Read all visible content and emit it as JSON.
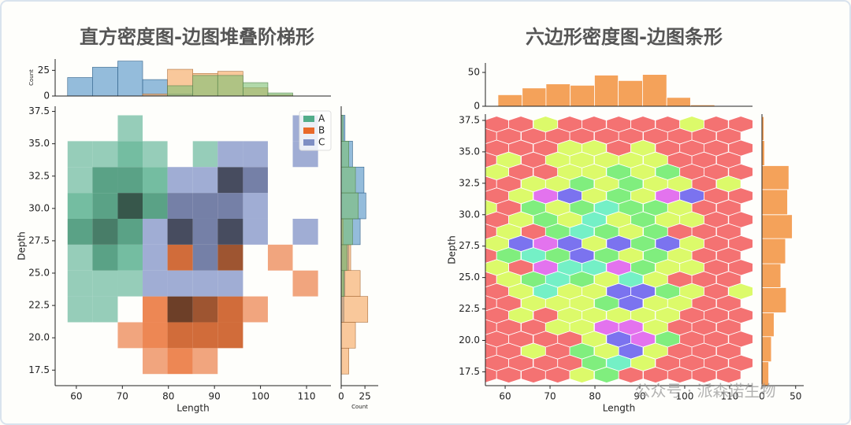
{
  "chart_data": [
    {
      "type": "hist2d",
      "title": "直方密度图-边图堆叠阶梯形",
      "xlabel": "Length",
      "ylabel": "Depth",
      "top_label": "Count",
      "right_label": "Count",
      "xlim": [
        55.4,
        115.3
      ],
      "ylim": [
        16.3,
        37.9
      ],
      "xticks": [
        60,
        70,
        80,
        90,
        100,
        110
      ],
      "yticks": [
        17.5,
        {
          "value": 20,
          "label": "20.0"
        },
        22.5,
        {
          "value": 25,
          "label": "25.0"
        },
        27.5,
        {
          "value": 30,
          "label": "30.0"
        },
        32.5,
        {
          "value": 35,
          "label": "35.0"
        },
        37.5
      ],
      "xbins": [
        58.1,
        63.5,
        69.0,
        74.4,
        79.8,
        85.3,
        90.7,
        96.2,
        101.6,
        107.0,
        112.5
      ],
      "ybins": [
        17.2,
        19.2,
        21.2,
        23.2,
        25.2,
        27.2,
        29.2,
        31.2,
        33.2,
        35.2,
        37.2
      ],
      "legend": "upper right",
      "top_ylim": [
        0,
        36
      ],
      "top_yticks": [
        0,
        25
      ],
      "right_xlim": [
        0,
        39
      ],
      "right_xticks": [
        0,
        25
      ],
      "series": [
        {
          "name": "A",
          "color": "#52ad8a",
          "hist_color": "#4d8fc6",
          "values": [
            [
              0,
              0,
              0,
              0,
              0,
              0,
              0,
              0,
              0,
              0
            ],
            [
              0,
              0,
              0,
              0,
              0,
              0,
              0,
              0,
              0,
              0
            ],
            [
              1,
              1,
              0,
              0,
              0,
              0,
              0,
              0,
              0,
              0
            ],
            [
              1,
              1,
              1,
              0,
              0,
              0,
              0,
              0,
              0,
              0
            ],
            [
              1,
              3,
              2,
              0,
              0,
              0,
              0,
              0,
              0,
              0
            ],
            [
              3,
              4,
              3,
              0,
              0,
              0,
              0,
              0,
              0,
              0
            ],
            [
              2,
              3,
              5,
              3,
              0,
              0,
              0,
              0,
              0,
              0
            ],
            [
              1,
              3,
              3,
              2,
              0,
              0,
              0,
              0,
              0,
              0
            ],
            [
              1,
              1,
              2,
              1,
              0,
              1,
              0,
              0,
              0,
              0
            ],
            [
              0,
              0,
              1,
              0,
              0,
              0,
              0,
              0,
              0,
              0
            ]
          ],
          "x_counts": [
            18,
            28,
            34,
            16,
            2,
            0,
            0,
            0,
            0,
            0
          ],
          "y_counts": [
            0,
            0,
            3,
            4,
            8,
            20,
            26,
            24,
            12,
            4
          ]
        },
        {
          "name": "B",
          "color": "#e8692a",
          "hist_color": "#f5a35c",
          "values": [
            [
              0,
              0,
              0,
              1,
              2,
              1,
              0,
              0,
              0,
              0
            ],
            [
              0,
              0,
              1,
              2,
              3,
              3,
              3,
              0,
              0,
              0
            ],
            [
              0,
              0,
              0,
              2,
              5,
              4,
              3,
              1,
              0,
              0
            ],
            [
              0,
              0,
              0,
              0,
              0,
              0,
              0,
              0,
              0,
              1
            ],
            [
              0,
              0,
              0,
              0,
              3,
              0,
              4,
              0,
              1,
              0
            ],
            [
              0,
              0,
              0,
              0,
              0,
              0,
              0,
              0,
              0,
              0
            ],
            [
              0,
              0,
              0,
              0,
              0,
              0,
              0,
              0,
              0,
              0
            ],
            [
              0,
              0,
              0,
              0,
              0,
              0,
              0,
              0,
              0,
              0
            ],
            [
              0,
              0,
              0,
              0,
              0,
              0,
              0,
              0,
              0,
              0
            ],
            [
              0,
              0,
              0,
              0,
              0,
              0,
              0,
              0,
              0,
              0
            ]
          ],
          "x_counts": [
            0,
            0,
            0,
            2,
            26,
            22,
            24,
            8,
            1,
            0
          ],
          "y_counts": [
            8,
            15,
            28,
            20,
            10,
            2,
            0,
            0,
            0,
            0
          ]
        },
        {
          "name": "C",
          "color": "#7f8fc4",
          "hist_color": "#7dbf74",
          "values": [
            [
              0,
              0,
              0,
              0,
              0,
              0,
              0,
              0,
              0,
              0
            ],
            [
              0,
              0,
              0,
              0,
              0,
              0,
              0,
              0,
              0,
              0
            ],
            [
              0,
              0,
              0,
              0,
              0,
              0,
              0,
              0,
              0,
              0
            ],
            [
              0,
              0,
              0,
              1,
              1,
              1,
              1,
              0,
              0,
              0
            ],
            [
              0,
              0,
              0,
              1,
              0,
              2,
              0,
              0,
              0,
              0
            ],
            [
              0,
              0,
              0,
              1,
              3,
              2,
              3,
              1,
              0,
              1
            ],
            [
              0,
              0,
              0,
              0,
              2,
              2,
              2,
              1,
              0,
              0
            ],
            [
              0,
              0,
              0,
              0,
              1,
              1,
              3,
              2,
              0,
              0
            ],
            [
              0,
              0,
              0,
              0,
              0,
              0,
              1,
              1,
              0,
              1
            ],
            [
              0,
              0,
              0,
              0,
              0,
              0,
              0,
              0,
              0,
              1
            ]
          ],
          "x_counts": [
            0,
            0,
            0,
            0,
            10,
            20,
            20,
            13,
            3,
            0
          ],
          "y_counts": [
            0,
            0,
            0,
            3,
            6,
            12,
            18,
            15,
            8,
            2
          ]
        }
      ]
    },
    {
      "type": "hexbin",
      "title": "六边形密度图-边图条形",
      "xlabel": "Length",
      "ylabel": "Depth",
      "xlim": [
        55.6,
        115.1
      ],
      "ylim": [
        16.4,
        38.0
      ],
      "xticks": [
        60,
        70,
        80,
        90,
        100,
        110
      ],
      "yticks": [
        17.5,
        {
          "value": 20,
          "label": "20.0"
        },
        22.5,
        {
          "value": 25,
          "label": "25.0"
        },
        27.5,
        {
          "value": 30,
          "label": "30.0"
        },
        32.5,
        {
          "value": 35,
          "label": "35.0"
        },
        37.5
      ],
      "hex_x": [
        58.1,
        63.5,
        69.0,
        74.4,
        79.8,
        85.3,
        90.7,
        96.2,
        101.6,
        107.0,
        112.5
      ],
      "hex_y": [
        37.2,
        36.25,
        35.3,
        34.35,
        33.4,
        32.45,
        31.5,
        30.55,
        29.6,
        28.65,
        27.7,
        26.75,
        25.8,
        24.85,
        23.9,
        22.95,
        22.0,
        21.05,
        20.1,
        19.15,
        18.2,
        17.25
      ],
      "counts": [
        [
          1,
          1,
          2,
          1,
          1,
          1,
          1,
          1,
          2,
          1,
          1
        ],
        [
          1,
          1,
          1,
          1,
          1,
          1,
          1,
          1,
          1,
          1,
          1
        ],
        [
          1,
          1,
          1,
          2,
          2,
          1,
          2,
          1,
          1,
          1,
          1
        ],
        [
          1,
          2,
          1,
          2,
          2,
          2,
          2,
          2,
          1,
          1,
          1
        ],
        [
          2,
          1,
          1,
          2,
          2,
          3,
          2,
          3,
          1,
          1,
          1
        ],
        [
          1,
          1,
          2,
          2,
          3,
          2,
          3,
          2,
          2,
          1,
          2
        ],
        [
          1,
          2,
          6,
          5,
          2,
          3,
          2,
          6,
          5,
          1,
          1
        ],
        [
          2,
          1,
          3,
          2,
          3,
          4,
          3,
          3,
          2,
          1,
          1
        ],
        [
          1,
          2,
          3,
          2,
          4,
          2,
          3,
          2,
          2,
          1,
          1
        ],
        [
          1,
          2,
          1,
          3,
          4,
          3,
          2,
          3,
          1,
          1,
          1
        ],
        [
          2,
          5,
          6,
          5,
          2,
          5,
          3,
          5,
          2,
          1,
          1
        ],
        [
          1,
          3,
          4,
          3,
          5,
          3,
          2,
          3,
          2,
          1,
          1
        ],
        [
          2,
          1,
          6,
          4,
          4,
          6,
          3,
          2,
          2,
          1,
          1
        ],
        [
          1,
          2,
          3,
          4,
          3,
          2,
          4,
          2,
          1,
          1,
          1
        ],
        [
          1,
          2,
          4,
          2,
          2,
          5,
          5,
          3,
          2,
          1,
          2
        ],
        [
          1,
          1,
          2,
          2,
          2,
          3,
          5,
          2,
          2,
          1,
          1
        ],
        [
          1,
          2,
          1,
          2,
          2,
          2,
          2,
          2,
          1,
          1,
          1
        ],
        [
          1,
          1,
          1,
          2,
          2,
          6,
          6,
          2,
          1,
          1,
          1
        ],
        [
          1,
          1,
          1,
          1,
          2,
          5,
          6,
          3,
          1,
          1,
          1
        ],
        [
          1,
          1,
          2,
          1,
          3,
          2,
          5,
          2,
          1,
          1,
          1
        ],
        [
          1,
          1,
          1,
          1,
          3,
          4,
          2,
          1,
          1,
          1,
          1
        ],
        [
          1,
          1,
          1,
          1,
          2,
          3,
          1,
          1,
          1,
          1,
          1
        ]
      ],
      "colors": [
        "#f47272",
        "#dcfa6a",
        "#80ee7e",
        "#74f0c6",
        "#7b73ef",
        "#e373ee"
      ],
      "bar_color": "#f4a25a",
      "top_bins": [
        58.4,
        63.8,
        69.1,
        74.5,
        79.9,
        85.2,
        90.6,
        96.0,
        101.3,
        106.7,
        112.1
      ],
      "top_counts": [
        17,
        27,
        33,
        31,
        46,
        38,
        47,
        13,
        2,
        1
      ],
      "top_ylim": [
        0,
        64
      ],
      "top_yticks": [
        0,
        50
      ],
      "right_bins": [
        16.4,
        18.3,
        20.3,
        22.2,
        24.2,
        26.1,
        28.1,
        30.0,
        32.0,
        33.9,
        35.9,
        37.8
      ],
      "right_counts": [
        10,
        14,
        18,
        36,
        28,
        35,
        45,
        38,
        40,
        4,
        3
      ],
      "right_xlim": [
        0,
        62
      ],
      "right_xticks": [
        0,
        50
      ]
    }
  ],
  "watermark": "公众号 · 派森诺生物"
}
